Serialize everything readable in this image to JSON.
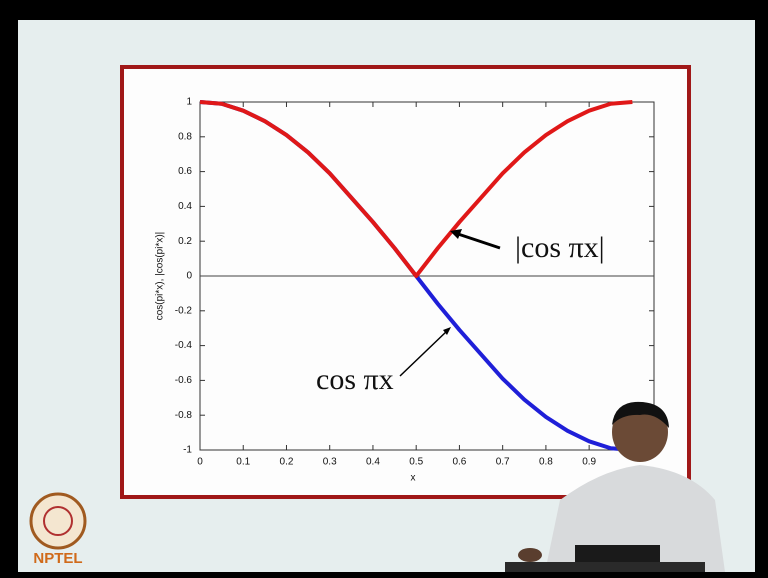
{
  "chart_data": {
    "type": "line",
    "x_label": "x",
    "y_label": "cos(pi*x), |cos(pi*x)|",
    "x": [
      0,
      0.05,
      0.1,
      0.15,
      0.2,
      0.25,
      0.3,
      0.35,
      0.4,
      0.45,
      0.5,
      0.55,
      0.6,
      0.65,
      0.7,
      0.75,
      0.8,
      0.85,
      0.9,
      0.95,
      1
    ],
    "series": [
      {
        "name": "cos πx",
        "color": "#1f1fd8",
        "values": [
          1,
          0.99,
          0.95,
          0.89,
          0.81,
          0.71,
          0.59,
          0.45,
          0.31,
          0.16,
          0,
          -0.16,
          -0.31,
          -0.45,
          -0.59,
          -0.71,
          -0.81,
          -0.89,
          -0.95,
          -0.99,
          -1
        ]
      },
      {
        "name": "|cos πx|",
        "color": "#e01818",
        "values": [
          1,
          0.99,
          0.95,
          0.89,
          0.81,
          0.71,
          0.59,
          0.45,
          0.31,
          0.16,
          0,
          0.16,
          0.31,
          0.45,
          0.59,
          0.71,
          0.81,
          0.89,
          0.95,
          0.99,
          1
        ]
      }
    ],
    "xlim": [
      0,
      1.05
    ],
    "xticks": [
      0,
      0.1,
      0.2,
      0.3,
      0.4,
      0.5,
      0.6,
      0.7,
      0.8,
      0.9
    ],
    "ylim": [
      -1,
      1
    ],
    "yticks": [
      -1,
      -0.8,
      -0.6,
      -0.4,
      -0.2,
      0,
      0.2,
      0.4,
      0.6,
      0.8,
      1
    ],
    "grid": false
  },
  "logo": "NPTEL"
}
